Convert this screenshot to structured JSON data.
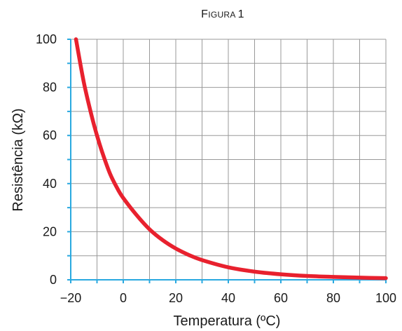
{
  "chart_data": {
    "type": "line",
    "title": "Figura 1",
    "xlabel": "Temperatura (ºC)",
    "ylabel": "Resistência (kΩ)",
    "xlim": [
      -20,
      100
    ],
    "ylim": [
      0,
      100
    ],
    "x_ticks": [
      -20,
      0,
      20,
      40,
      60,
      80,
      100
    ],
    "x_tick_labels": [
      "−20",
      "0",
      "20",
      "40",
      "60",
      "80",
      "100"
    ],
    "y_ticks": [
      0,
      20,
      40,
      60,
      80,
      100
    ],
    "y_tick_labels": [
      "0",
      "20",
      "40",
      "60",
      "80",
      "100"
    ],
    "grid": true,
    "series": [
      {
        "color": "#e8212e",
        "x": [
          -18,
          -15,
          -12,
          -10,
          -8,
          -5,
          -2,
          0,
          5,
          10,
          15,
          20,
          25,
          30,
          40,
          50,
          60,
          70,
          80,
          90,
          100
        ],
        "y": [
          100,
          82,
          68,
          60,
          53,
          44,
          37.5,
          34,
          27,
          21,
          16.5,
          13,
          10.3,
          8.2,
          5.2,
          3.4,
          2.3,
          1.6,
          1.2,
          0.9,
          0.7
        ]
      }
    ],
    "colors": {
      "curve": "#e8212e",
      "grid": "#999999",
      "axis": "#29a9e0",
      "text": "#1a1a1a"
    }
  }
}
